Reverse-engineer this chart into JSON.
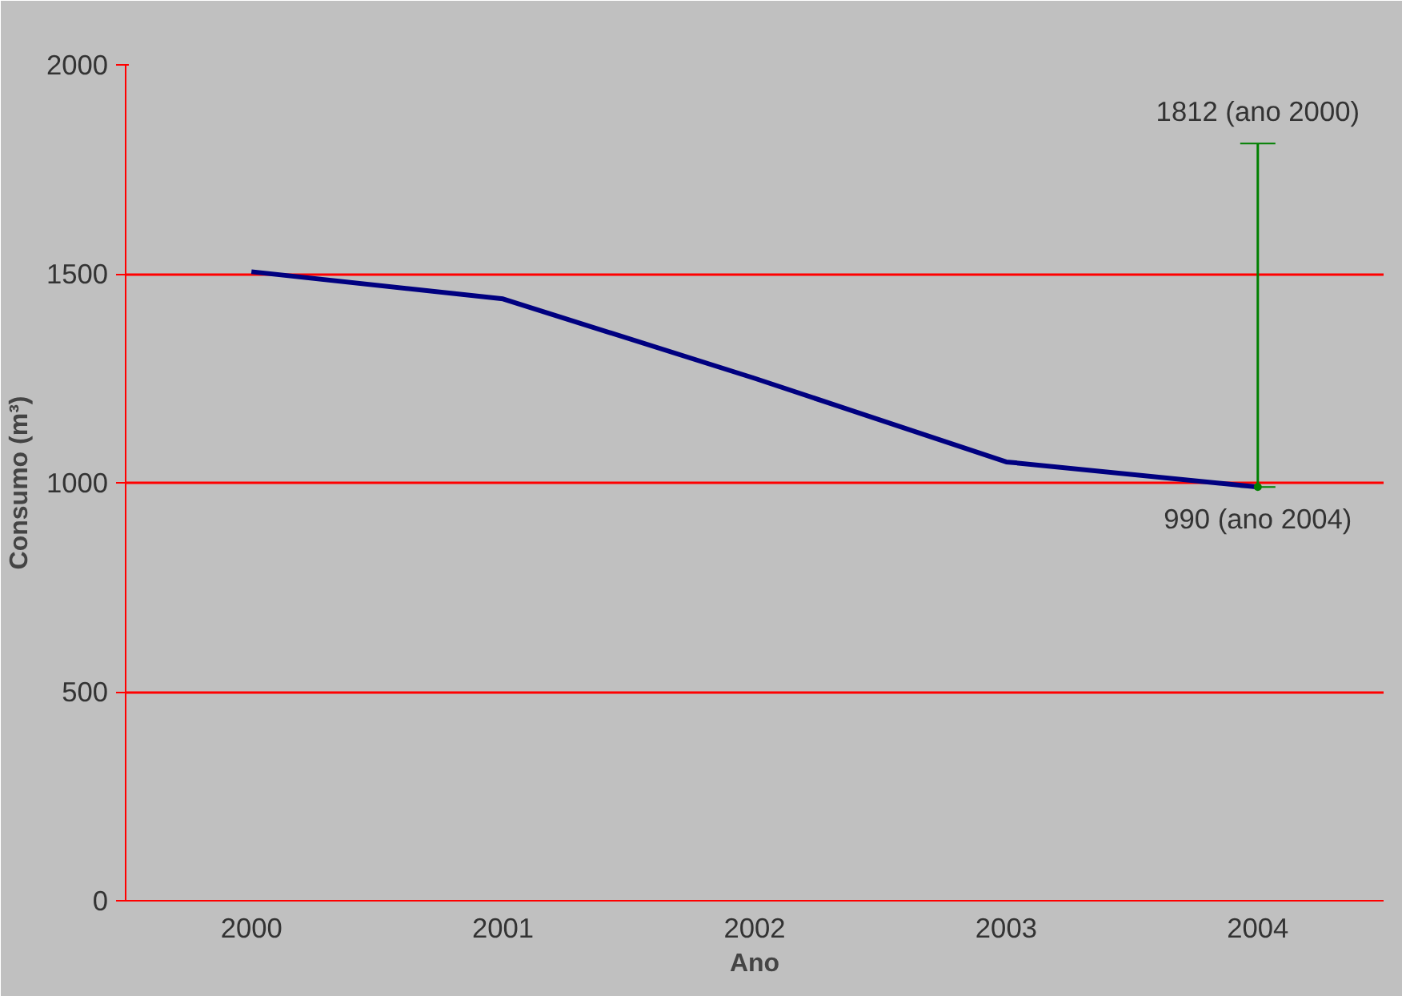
{
  "chart_data": {
    "type": "line",
    "xlabel": "Ano",
    "ylabel": "Consumo (m³)",
    "categories": [
      "2000",
      "2001",
      "2002",
      "2003",
      "2004"
    ],
    "series": [
      {
        "color": "#000080",
        "values": [
          1505,
          1440,
          1250,
          1050,
          990
        ]
      },
      {
        "color": "#008000",
        "values": [
          null,
          null,
          null,
          null,
          990
        ],
        "marker": "circle",
        "errors": [
          null,
          null,
          null,
          null,
          [
            990,
            1812
          ]
        ]
      }
    ],
    "ylim": [
      0,
      2000
    ],
    "yticks": [
      0,
      500,
      1000,
      1500,
      2000
    ],
    "grid": "y",
    "line_style": "solid",
    "annotations": [
      {
        "text": "1812 (ano 2000)",
        "x": "2004",
        "y": 1812
      },
      {
        "text": "990 (ano 2004)",
        "x": "2004",
        "y": 990
      }
    ]
  }
}
